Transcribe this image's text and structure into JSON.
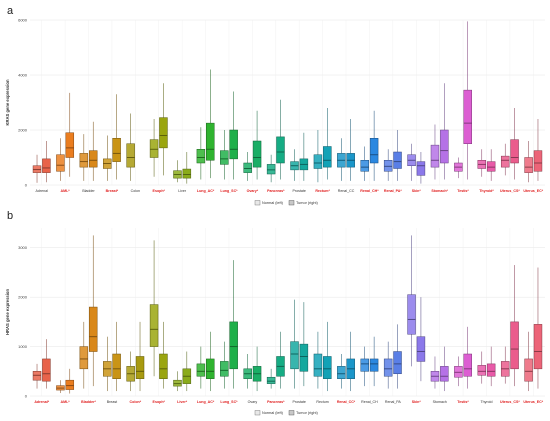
{
  "legend": {
    "normal_label": "Normal (left)",
    "tumor_label": "Tumor (right)"
  },
  "chart_data": [
    {
      "panel": "a",
      "type": "boxplot",
      "ylabel": "KRAS gene expression",
      "ylim": [
        0,
        6000
      ],
      "yticks": [
        0,
        2000,
        4000,
        6000
      ],
      "grid": true,
      "legend_position": "bottom",
      "categories": [
        {
          "label": "Adrenal",
          "significant": false,
          "color": "#e8634a",
          "normal": {
            "lw": 80,
            "q1": 450,
            "med": 560,
            "q3": 700,
            "uw": 1100
          },
          "tumor": {
            "lw": 100,
            "q1": 450,
            "med": 620,
            "q3": 950,
            "uw": 1600
          }
        },
        {
          "label": "AML*",
          "significant": true,
          "color": "#ea7d1f",
          "normal": {
            "lw": 150,
            "q1": 500,
            "med": 720,
            "q3": 1100,
            "uw": 1700
          },
          "tumor": {
            "lw": 300,
            "q1": 1000,
            "med": 1350,
            "q3": 1900,
            "uw": 3350
          }
        },
        {
          "label": "Bladder",
          "significant": false,
          "color": "#d9881a",
          "normal": {
            "lw": 150,
            "q1": 650,
            "med": 850,
            "q3": 1150,
            "uw": 1850
          },
          "tumor": {
            "lw": 150,
            "q1": 650,
            "med": 900,
            "q3": 1250,
            "uw": 2300
          }
        },
        {
          "label": "Breast*",
          "significant": true,
          "color": "#c99416",
          "normal": {
            "lw": 150,
            "q1": 600,
            "med": 780,
            "q3": 950,
            "uw": 1800
          },
          "tumor": {
            "lw": 200,
            "q1": 850,
            "med": 1150,
            "q3": 1700,
            "uw": 3300
          }
        },
        {
          "label": "Colon",
          "significant": false,
          "color": "#a89a10",
          "normal": {
            "lw": 150,
            "q1": 650,
            "med": 1000,
            "q3": 1500,
            "uw": 2600
          }
        },
        {
          "label": "Esoph*",
          "significant": true,
          "color": "#9aa50f",
          "normal": {
            "lw": 300,
            "q1": 1000,
            "med": 1300,
            "q3": 1650,
            "uw": 2400
          },
          "tumor": {
            "lw": 350,
            "q1": 1350,
            "med": 1800,
            "q3": 2450,
            "uw": 3700
          }
        },
        {
          "label": "Liver",
          "significant": false,
          "color": "#8aab1a",
          "normal": {
            "lw": 100,
            "q1": 250,
            "med": 380,
            "q3": 520,
            "uw": 900
          },
          "tumor": {
            "lw": 50,
            "q1": 250,
            "med": 380,
            "q3": 580,
            "uw": 1200
          }
        },
        {
          "label": "Lung_AC*",
          "significant": true,
          "color": "#2fb32f",
          "normal": {
            "lw": 200,
            "q1": 800,
            "med": 1000,
            "q3": 1300,
            "uw": 2100
          },
          "tumor": {
            "lw": 250,
            "q1": 900,
            "med": 1300,
            "q3": 2250,
            "uw": 4200
          }
        },
        {
          "label": "Lung_SC*",
          "significant": true,
          "color": "#1fb04a",
          "normal": {
            "lw": 200,
            "q1": 750,
            "med": 950,
            "q3": 1250,
            "uw": 2000
          },
          "tumor": {
            "lw": 200,
            "q1": 950,
            "med": 1300,
            "q3": 2000,
            "uw": 3400
          }
        },
        {
          "label": "Ovary*",
          "significant": true,
          "color": "#1aae66",
          "normal": {
            "lw": 150,
            "q1": 450,
            "med": 600,
            "q3": 800,
            "uw": 1200
          },
          "tumor": {
            "lw": 200,
            "q1": 650,
            "med": 1000,
            "q3": 1600,
            "uw": 2700
          }
        },
        {
          "label": "Pancreas*",
          "significant": true,
          "color": "#16ac84",
          "normal": {
            "lw": 100,
            "q1": 400,
            "med": 550,
            "q3": 750,
            "uw": 1100
          },
          "tumor": {
            "lw": 200,
            "q1": 800,
            "med": 1200,
            "q3": 1750,
            "uw": 3100
          }
        },
        {
          "label": "Prostate",
          "significant": false,
          "color": "#15a89e",
          "normal": {
            "lw": 150,
            "q1": 550,
            "med": 700,
            "q3": 850,
            "uw": 1300
          },
          "tumor": {
            "lw": 150,
            "q1": 550,
            "med": 750,
            "q3": 950,
            "uw": 1900
          }
        },
        {
          "label": "Rectum*",
          "significant": true,
          "color": "#13a2b6",
          "normal": {
            "lw": 100,
            "q1": 600,
            "med": 800,
            "q3": 1100,
            "uw": 2000
          },
          "tumor": {
            "lw": 200,
            "q1": 650,
            "med": 900,
            "q3": 1400,
            "uw": 2800
          }
        },
        {
          "label": "Renal_CC",
          "significant": false,
          "color": "#1b96c9",
          "normal": {
            "lw": 150,
            "q1": 650,
            "med": 900,
            "q3": 1150,
            "uw": 1700
          },
          "tumor": {
            "lw": 150,
            "q1": 650,
            "med": 900,
            "q3": 1150,
            "uw": 2400
          }
        },
        {
          "label": "Renal_CH*",
          "significant": true,
          "color": "#2b88e0",
          "normal": {
            "lw": 150,
            "q1": 500,
            "med": 650,
            "q3": 900,
            "uw": 1400
          },
          "tumor": {
            "lw": 150,
            "q1": 800,
            "med": 1100,
            "q3": 1700,
            "uw": 2700
          }
        },
        {
          "label": "Renal_PA*",
          "significant": true,
          "color": "#5a7fe6",
          "normal": {
            "lw": 150,
            "q1": 500,
            "med": 680,
            "q3": 900,
            "uw": 1300
          },
          "tumor": {
            "lw": 150,
            "q1": 600,
            "med": 850,
            "q3": 1200,
            "uw": 2000
          }
        },
        {
          "label": "Skin*",
          "significant": true,
          "color": "#8b78ea",
          "normal": {
            "lw": 150,
            "q1": 700,
            "med": 900,
            "q3": 1100,
            "uw": 1500
          },
          "tumor": {
            "lw": 50,
            "q1": 350,
            "med": 700,
            "q3": 850,
            "uw": 1200
          }
        },
        {
          "label": "Stomach*",
          "significant": true,
          "color": "#b572e6",
          "normal": {
            "lw": 200,
            "q1": 650,
            "med": 900,
            "q3": 1450,
            "uw": 2200
          },
          "tumor": {
            "lw": 200,
            "q1": 800,
            "med": 1250,
            "q3": 2000,
            "uw": 3700
          }
        },
        {
          "label": "Testis*",
          "significant": true,
          "color": "#dc5ed2",
          "normal": {
            "lw": 250,
            "q1": 500,
            "med": 650,
            "q3": 800,
            "uw": 1000
          },
          "tumor": {
            "lw": 200,
            "q1": 1500,
            "med": 2250,
            "q3": 3450,
            "uw": 5950
          }
        },
        {
          "label": "Thyroid*",
          "significant": true,
          "color": "#e85aa8",
          "normal": {
            "lw": 300,
            "q1": 600,
            "med": 750,
            "q3": 900,
            "uw": 1300
          },
          "tumor": {
            "lw": 150,
            "q1": 500,
            "med": 650,
            "q3": 850,
            "uw": 1300
          }
        },
        {
          "label": "Uterus_CS*",
          "significant": true,
          "color": "#ea5c8c",
          "normal": {
            "lw": 350,
            "q1": 650,
            "med": 900,
            "q3": 1050,
            "uw": 1500
          },
          "tumor": {
            "lw": 200,
            "q1": 800,
            "med": 1000,
            "q3": 1650,
            "uw": 2800
          }
        },
        {
          "label": "Uterus_EC*",
          "significant": true,
          "color": "#ec6478",
          "normal": {
            "lw": 100,
            "q1": 450,
            "med": 650,
            "q3": 1000,
            "uw": 1600
          },
          "tumor": {
            "lw": 150,
            "q1": 500,
            "med": 800,
            "q3": 1250,
            "uw": 2400
          }
        }
      ]
    },
    {
      "panel": "b",
      "type": "boxplot",
      "ylabel": "HRAS gene expression",
      "ylim": [
        0,
        3400
      ],
      "yticks": [
        0,
        1000,
        2000,
        3000
      ],
      "grid": true,
      "legend_position": "bottom",
      "categories": [
        {
          "label": "Adrenal*",
          "significant": true,
          "color": "#e8634a",
          "normal": {
            "lw": 150,
            "q1": 320,
            "med": 420,
            "q3": 500,
            "uw": 650
          },
          "tumor": {
            "lw": 150,
            "q1": 300,
            "med": 450,
            "q3": 750,
            "uw": 1150
          }
        },
        {
          "label": "AML*",
          "significant": true,
          "color": "#ea7d1f",
          "normal": {
            "lw": 60,
            "q1": 120,
            "med": 160,
            "q3": 210,
            "uw": 320
          },
          "tumor": {
            "lw": 50,
            "q1": 130,
            "med": 210,
            "q3": 320,
            "uw": 550
          }
        },
        {
          "label": "Bladder*",
          "significant": true,
          "color": "#d9881a",
          "normal": {
            "lw": 150,
            "q1": 550,
            "med": 750,
            "q3": 1000,
            "uw": 1500
          },
          "tumor": {
            "lw": 200,
            "q1": 900,
            "med": 1200,
            "q3": 1800,
            "uw": 3250
          }
        },
        {
          "label": "Breast",
          "significant": false,
          "color": "#c99416",
          "normal": {
            "lw": 100,
            "q1": 400,
            "med": 550,
            "q3": 700,
            "uw": 1200
          },
          "tumor": {
            "lw": 100,
            "q1": 350,
            "med": 550,
            "q3": 850,
            "uw": 1500
          }
        },
        {
          "label": "Colon*",
          "significant": true,
          "color": "#a89a10",
          "normal": {
            "lw": 100,
            "q1": 300,
            "med": 450,
            "q3": 600,
            "uw": 900
          },
          "tumor": {
            "lw": 100,
            "q1": 350,
            "med": 500,
            "q3": 800,
            "uw": 1500
          }
        },
        {
          "label": "Esoph*",
          "significant": true,
          "color": "#9aa50f",
          "normal": {
            "lw": 400,
            "q1": 1000,
            "med": 1350,
            "q3": 1850,
            "uw": 3150
          },
          "tumor": {
            "lw": 150,
            "q1": 350,
            "med": 550,
            "q3": 850,
            "uw": 1500
          }
        },
        {
          "label": "Liver*",
          "significant": true,
          "color": "#8aab1a",
          "normal": {
            "lw": 100,
            "q1": 200,
            "med": 250,
            "q3": 320,
            "uw": 500
          },
          "tumor": {
            "lw": 100,
            "q1": 250,
            "med": 400,
            "q3": 550,
            "uw": 900
          }
        },
        {
          "label": "Lung_AC*",
          "significant": true,
          "color": "#2fb32f",
          "normal": {
            "lw": 150,
            "q1": 400,
            "med": 500,
            "q3": 650,
            "uw": 1000
          },
          "tumor": {
            "lw": 100,
            "q1": 350,
            "med": 500,
            "q3": 750,
            "uw": 1300
          }
        },
        {
          "label": "Lung_SC*",
          "significant": true,
          "color": "#1fb04a",
          "normal": {
            "lw": 150,
            "q1": 400,
            "med": 520,
            "q3": 700,
            "uw": 1100
          },
          "tumor": {
            "lw": 150,
            "q1": 550,
            "med": 1000,
            "q3": 1500,
            "uw": 2750
          }
        },
        {
          "label": "Ovary",
          "significant": false,
          "color": "#1aae66",
          "normal": {
            "lw": 150,
            "q1": 350,
            "med": 450,
            "q3": 550,
            "uw": 850
          },
          "tumor": {
            "lw": 100,
            "q1": 300,
            "med": 450,
            "q3": 600,
            "uw": 1000
          }
        },
        {
          "label": "Pancreas*",
          "significant": true,
          "color": "#16ac84",
          "normal": {
            "lw": 150,
            "q1": 250,
            "med": 300,
            "q3": 380,
            "uw": 550
          },
          "tumor": {
            "lw": 150,
            "q1": 400,
            "med": 600,
            "q3": 800,
            "uw": 1300
          }
        },
        {
          "label": "Prostate",
          "significant": false,
          "color": "#15a89e",
          "normal": {
            "lw": 150,
            "q1": 550,
            "med": 850,
            "q3": 1100,
            "uw": 1950
          },
          "tumor": {
            "lw": 200,
            "q1": 500,
            "med": 800,
            "q3": 1050,
            "uw": 1900
          }
        },
        {
          "label": "Rectum",
          "significant": false,
          "color": "#13a2b6",
          "normal": {
            "lw": 150,
            "q1": 400,
            "med": 550,
            "q3": 850,
            "uw": 1300
          },
          "tumor": {
            "lw": 100,
            "q1": 350,
            "med": 550,
            "q3": 800,
            "uw": 1500
          }
        },
        {
          "label": "Renal_CC*",
          "significant": true,
          "color": "#1b96c9",
          "normal": {
            "lw": 150,
            "q1": 350,
            "med": 450,
            "q3": 600,
            "uw": 850
          },
          "tumor": {
            "lw": 100,
            "q1": 350,
            "med": 550,
            "q3": 750,
            "uw": 1300
          }
        },
        {
          "label": "Renal_CH",
          "significant": false,
          "color": "#2b88e0",
          "normal": {
            "lw": 200,
            "q1": 500,
            "med": 650,
            "q3": 750,
            "uw": 1000
          },
          "tumor": {
            "lw": 200,
            "q1": 500,
            "med": 650,
            "q3": 750,
            "uw": 1200
          }
        },
        {
          "label": "Renal_PA",
          "significant": false,
          "color": "#5a7fe6",
          "normal": {
            "lw": 150,
            "q1": 400,
            "med": 550,
            "q3": 750,
            "uw": 1100
          },
          "tumor": {
            "lw": 150,
            "q1": 450,
            "med": 650,
            "q3": 900,
            "uw": 1450
          }
        },
        {
          "label": "Skin*",
          "significant": true,
          "color": "#8b78ea",
          "normal": {
            "lw": 600,
            "q1": 1250,
            "med": 1550,
            "q3": 2050,
            "uw": 3250
          },
          "tumor": {
            "lw": 300,
            "q1": 700,
            "med": 900,
            "q3": 1200,
            "uw": 2000
          }
        },
        {
          "label": "Stomach",
          "significant": false,
          "color": "#b572e6",
          "normal": {
            "lw": 150,
            "q1": 300,
            "med": 400,
            "q3": 500,
            "uw": 800
          },
          "tumor": {
            "lw": 100,
            "q1": 300,
            "med": 400,
            "q3": 600,
            "uw": 1000
          }
        },
        {
          "label": "Testis*",
          "significant": true,
          "color": "#dc5ed2",
          "normal": {
            "lw": 200,
            "q1": 380,
            "med": 480,
            "q3": 600,
            "uw": 800
          },
          "tumor": {
            "lw": 150,
            "q1": 400,
            "med": 550,
            "q3": 850,
            "uw": 1400
          }
        },
        {
          "label": "Thyroid",
          "significant": false,
          "color": "#e85aa8",
          "normal": {
            "lw": 250,
            "q1": 420,
            "med": 500,
            "q3": 620,
            "uw": 900
          },
          "tumor": {
            "lw": 200,
            "q1": 400,
            "med": 500,
            "q3": 650,
            "uw": 1000
          }
        },
        {
          "label": "Uterus_CS*",
          "significant": true,
          "color": "#ea5c8c",
          "normal": {
            "lw": 250,
            "q1": 400,
            "med": 550,
            "q3": 700,
            "uw": 1000
          },
          "tumor": {
            "lw": 200,
            "q1": 550,
            "med": 950,
            "q3": 1500,
            "uw": 2650
          }
        },
        {
          "label": "Uterus_EC*",
          "significant": true,
          "color": "#ec6478",
          "normal": {
            "lw": 100,
            "q1": 300,
            "med": 500,
            "q3": 750,
            "uw": 1300
          },
          "tumor": {
            "lw": 150,
            "q1": 550,
            "med": 900,
            "q3": 1450,
            "uw": 2600
          }
        }
      ]
    }
  ]
}
